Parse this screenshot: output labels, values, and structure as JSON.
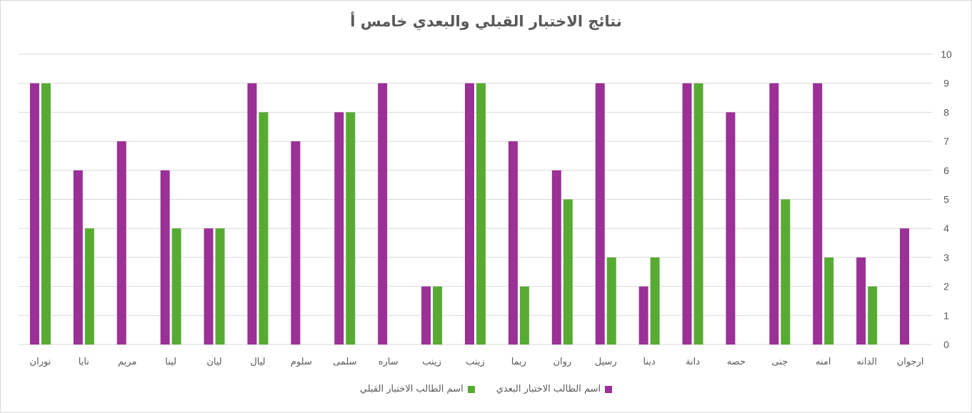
{
  "chart_data": {
    "type": "bar",
    "title": "نتائج الاختبار القبلي والبعدي خامس أ",
    "xlabel": "",
    "ylabel": "",
    "ylim": [
      0,
      10
    ],
    "yticks": [
      0,
      1,
      2,
      3,
      4,
      5,
      6,
      7,
      8,
      9,
      10
    ],
    "grid": true,
    "legend_position": "bottom",
    "categories": [
      "نوران",
      "نايا",
      "مريم",
      "لينا",
      "ليان",
      "ليال",
      "سلوم",
      "سلمى",
      "ساره",
      "زينب",
      "زينب",
      "ريما",
      "روان",
      "رسيل",
      "دينا",
      "دانة",
      "حصه",
      "جنى",
      "امنه",
      "الدانه",
      "ارجوان"
    ],
    "series": [
      {
        "name": "اسم الطالب الاختبار البعدي",
        "color": "#9b3096",
        "values": [
          9,
          6,
          7,
          6,
          4,
          9,
          7,
          8,
          9,
          2,
          9,
          7,
          6,
          9,
          2,
          9,
          8,
          9,
          9,
          3,
          4
        ]
      },
      {
        "name": "اسم الطالب الاختبار القبلي",
        "color": "#57ab33",
        "values": [
          9,
          4,
          null,
          4,
          4,
          8,
          null,
          8,
          null,
          2,
          9,
          2,
          5,
          3,
          3,
          9,
          null,
          5,
          3,
          2,
          null
        ]
      }
    ]
  }
}
